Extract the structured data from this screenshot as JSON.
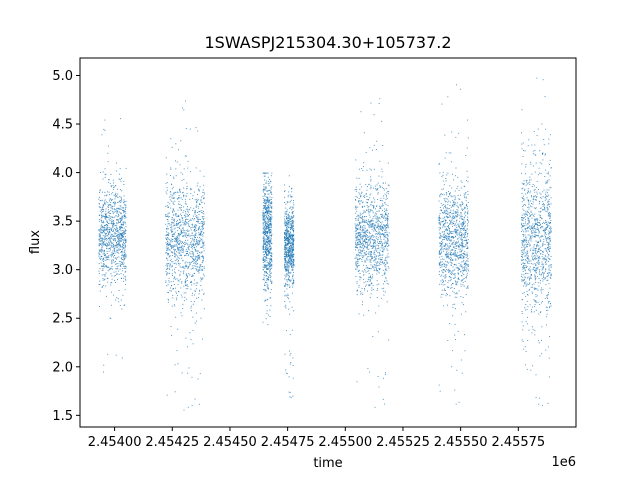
{
  "chart_data": {
    "type": "scatter",
    "title": "1SWASPJ215304.30+105737.2",
    "xlabel": "time",
    "ylabel": "flux",
    "x_offset_label": "1e6",
    "xlim": [
      2.45385,
      2.456
    ],
    "ylim": [
      1.38,
      5.18
    ],
    "x_ticks": [
      2.454,
      2.45425,
      2.4545,
      2.45475,
      2.455,
      2.45525,
      2.4555,
      2.45575
    ],
    "x_tick_labels": [
      "2.45400",
      "2.45425",
      "2.45450",
      "2.45475",
      "2.45500",
      "2.45525",
      "2.45550",
      "2.45575"
    ],
    "y_ticks": [
      1.5,
      2.0,
      2.5,
      3.0,
      3.5,
      4.0,
      4.5,
      5.0
    ],
    "y_tick_labels": [
      "1.5",
      "2.0",
      "2.5",
      "3.0",
      "3.5",
      "4.0",
      "4.5",
      "5.0"
    ],
    "grid": false,
    "point_color": "#1f77b4",
    "series": [
      {
        "values": [
          {
            "x_range": [
              2.453929,
              2.454048
            ],
            "y_core": [
              2.85,
              3.85
            ],
            "y_range": [
              1.85,
              4.63
            ]
          },
          {
            "x_range": [
              2.454219,
              2.454388
            ],
            "y_core": [
              2.7,
              3.9
            ],
            "y_range": [
              1.55,
              4.75
            ]
          },
          {
            "x_range": [
              2.454641,
              2.45468
            ],
            "y_core": [
              2.8,
              3.9
            ],
            "y_range": [
              2.35,
              4.0
            ]
          },
          {
            "x_range": [
              2.454734,
              2.454775
            ],
            "y_core": [
              2.8,
              3.7
            ],
            "y_range": [
              1.65,
              4.0
            ]
          },
          {
            "x_range": [
              2.45504,
              2.455188
            ],
            "y_core": [
              2.8,
              3.9
            ],
            "y_range": [
              1.55,
              4.82
            ]
          },
          {
            "x_range": [
              2.455404,
              2.455532
            ],
            "y_core": [
              2.75,
              3.85
            ],
            "y_range": [
              1.58,
              5.0
            ]
          },
          {
            "x_range": [
              2.455761,
              2.455891
            ],
            "y_core": [
              2.5,
              4.1
            ],
            "y_range": [
              1.55,
              5.02
            ]
          }
        ]
      }
    ]
  }
}
